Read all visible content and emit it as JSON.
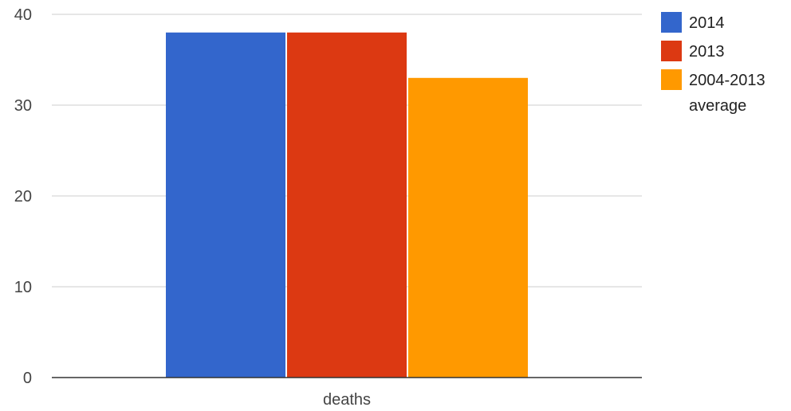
{
  "chart_data": {
    "type": "bar",
    "categories": [
      "deaths"
    ],
    "series": [
      {
        "name": "2014",
        "values": [
          38
        ],
        "color": "#3366cc"
      },
      {
        "name": "2013",
        "values": [
          38
        ],
        "color": "#dc3912"
      },
      {
        "name": [
          "2004-2013",
          "average"
        ],
        "values": [
          33
        ],
        "color": "#ff9900"
      }
    ],
    "ylim": [
      0,
      40
    ],
    "yticks": [
      0,
      10,
      20,
      30,
      40
    ],
    "grid": true,
    "legend_position": "right",
    "title": "",
    "xlabel": "",
    "ylabel": ""
  }
}
